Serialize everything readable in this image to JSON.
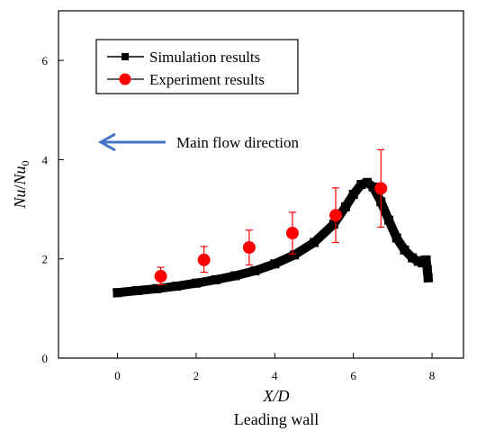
{
  "chart_data": {
    "type": "line",
    "xlabel": "X/D",
    "xlabel_sub": "Leading wall",
    "ylabel": {
      "base1": "Nu",
      "sub1": "",
      "sep": "/",
      "base2": "Nu",
      "sub2": "0"
    },
    "xlim": [
      -1.5,
      8.8
    ],
    "ylim": [
      0,
      7.0
    ],
    "xticks": [
      0,
      2,
      4,
      6,
      8
    ],
    "yticks": [
      0,
      2,
      4,
      6
    ],
    "grid": false,
    "legend_position": "top-left",
    "annotation": {
      "text": "Main flow direction",
      "arrow_direction": "left",
      "arrow_color": "#4472c4"
    },
    "series": [
      {
        "name": "Simulation results",
        "color": "#000000",
        "marker": "square",
        "x": [
          0,
          0.5,
          1.0,
          1.5,
          2.0,
          2.5,
          3.0,
          3.5,
          4.0,
          4.5,
          5.0,
          5.5,
          5.8,
          6.0,
          6.2,
          6.35,
          6.5,
          6.7,
          6.9,
          7.1,
          7.3,
          7.5,
          7.65,
          7.75,
          7.8,
          7.85,
          7.88,
          7.9
        ],
        "y": [
          1.32,
          1.36,
          1.4,
          1.45,
          1.51,
          1.58,
          1.66,
          1.76,
          1.9,
          2.08,
          2.33,
          2.7,
          3.05,
          3.3,
          3.5,
          3.54,
          3.45,
          3.15,
          2.78,
          2.42,
          2.18,
          2.02,
          1.95,
          1.92,
          1.97,
          1.98,
          1.78,
          1.62
        ]
      },
      {
        "name": "Experiment results",
        "color": "#ff0000",
        "marker": "circle",
        "x": [
          1.1,
          2.2,
          3.35,
          4.45,
          5.55,
          6.7
        ],
        "y": [
          1.65,
          1.98,
          2.23,
          2.52,
          2.88,
          3.42
        ],
        "err_low": [
          0.17,
          0.25,
          0.35,
          0.42,
          0.55,
          0.78
        ],
        "err_high": [
          0.18,
          0.27,
          0.35,
          0.42,
          0.55,
          0.78
        ]
      }
    ]
  }
}
